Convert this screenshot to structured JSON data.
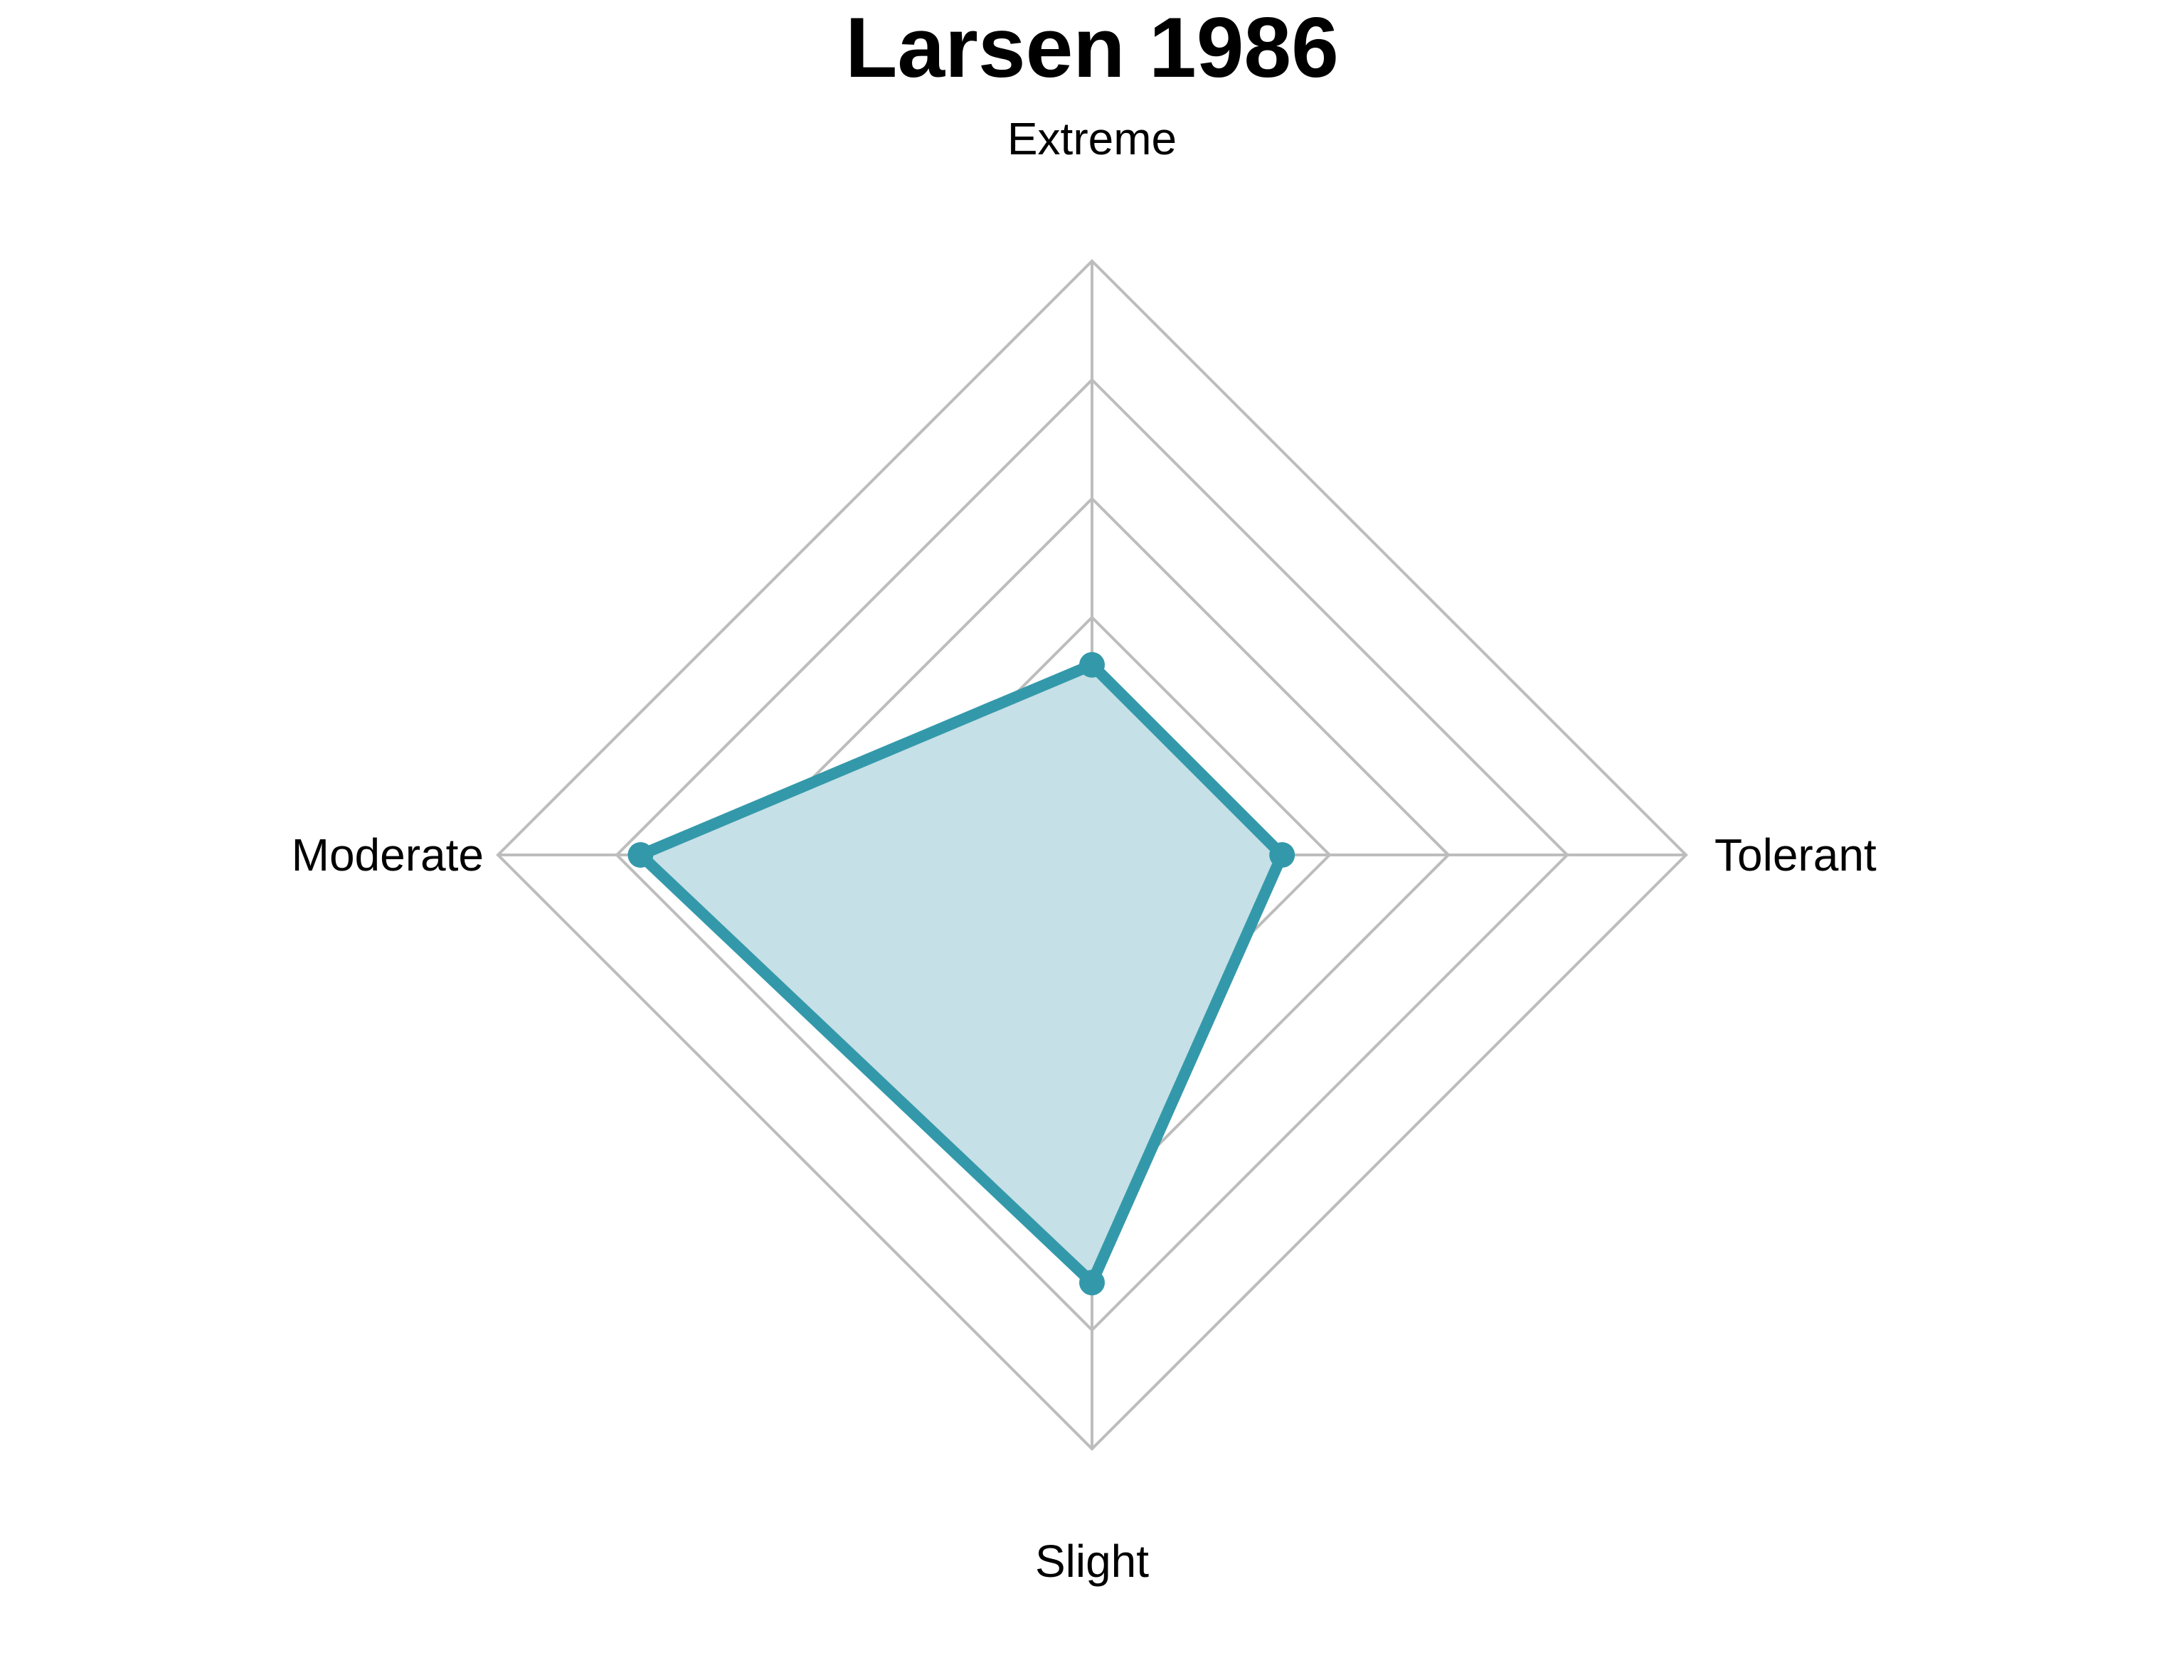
{
  "chart_data": {
    "type": "radar",
    "title": "Larsen 1986",
    "axes": [
      "Extreme",
      "Tolerant",
      "Slight",
      "Moderate"
    ],
    "rlim": [
      0,
      5
    ],
    "grid_levels": 5,
    "grid_shape": "polygon",
    "series": [
      {
        "values": [
          1.6,
          1.6,
          3.6,
          3.8
        ],
        "color": "#3399aa",
        "fill": "#c5e0e6"
      }
    ],
    "legend": "none"
  }
}
